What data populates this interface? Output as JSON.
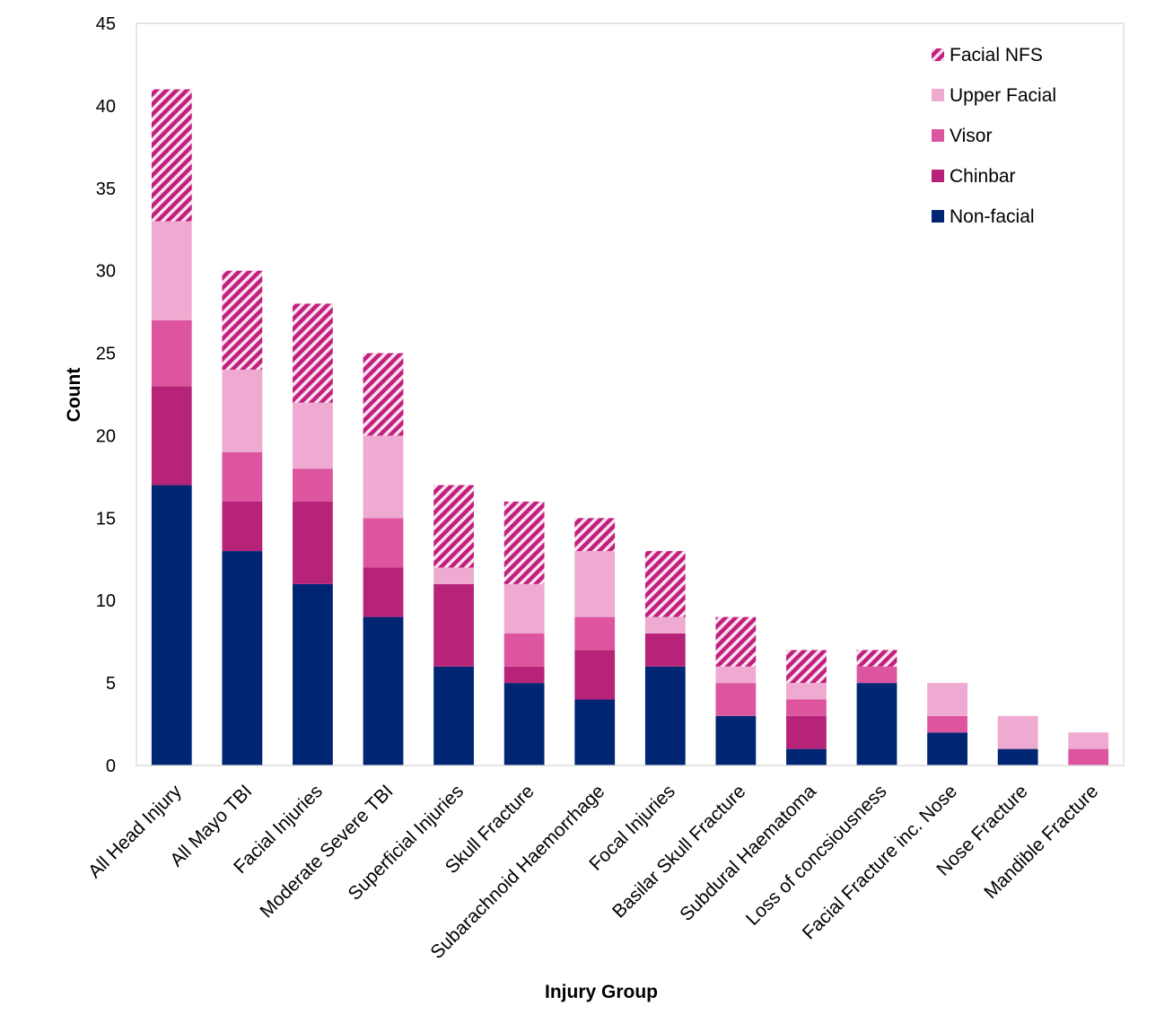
{
  "chart_data": {
    "type": "bar",
    "stacked": true,
    "title": "",
    "xlabel": "Injury Group",
    "ylabel": "Count",
    "ylim": [
      0,
      45
    ],
    "yticks": [
      0,
      5,
      10,
      15,
      20,
      25,
      30,
      35,
      40,
      45
    ],
    "grid": false,
    "legend_position": "top-right",
    "categories": [
      "All Head Injury",
      "All Mayo TBI",
      "Facial Injuries",
      "Moderate Severe TBI",
      "Superficial Injuries",
      "Skull Fracture",
      "Subarachnoid Haemorrhage",
      "Focal Injuries",
      "Basilar Skull Fracture",
      "Subdural Haematoma",
      "Loss of concsiousness",
      "Facial Fracture inc. Nose",
      "Nose Fracture",
      "Mandible Fracture"
    ],
    "series": [
      {
        "name": "Non-facial",
        "color": "#002673",
        "pattern": "solid",
        "values": [
          17,
          13,
          11,
          9,
          6,
          5,
          4,
          6,
          3,
          1,
          5,
          2,
          1,
          0
        ]
      },
      {
        "name": "Chinbar",
        "color": "#b8237a",
        "pattern": "solid",
        "values": [
          6,
          3,
          5,
          3,
          5,
          1,
          3,
          2,
          0,
          2,
          0,
          0,
          0,
          0
        ]
      },
      {
        "name": "Visor",
        "color": "#dd559f",
        "pattern": "solid",
        "values": [
          4,
          3,
          2,
          3,
          0,
          2,
          2,
          0,
          2,
          1,
          1,
          1,
          0,
          1
        ]
      },
      {
        "name": "Upper Facial",
        "color": "#eeaad0",
        "pattern": "solid",
        "values": [
          6,
          5,
          4,
          5,
          1,
          3,
          4,
          1,
          1,
          1,
          0,
          2,
          2,
          1
        ]
      },
      {
        "name": "Facial NFS",
        "color": "#c21f7e",
        "pattern": "diagonal-hatch",
        "values": [
          8,
          6,
          6,
          5,
          5,
          5,
          2,
          4,
          3,
          2,
          1,
          0,
          0,
          0
        ]
      }
    ]
  }
}
